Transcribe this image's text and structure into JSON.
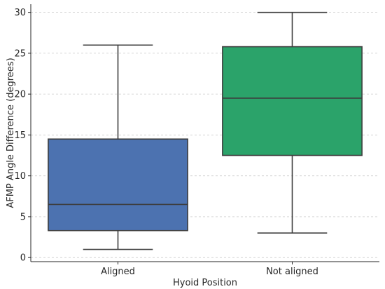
{
  "chart_data": {
    "type": "box",
    "xlabel": "Hyoid Position",
    "ylabel": "AFMP Angle Difference (degrees)",
    "ylim": [
      -0.5,
      31
    ],
    "yticks": [
      0,
      5,
      10,
      15,
      20,
      25,
      30
    ],
    "grid": "horizontal dashed",
    "categories": [
      "Aligned",
      "Not aligned"
    ],
    "boxes": [
      {
        "category": "Aligned",
        "min": 1,
        "q1": 3.3,
        "median": 6.5,
        "q3": 14.5,
        "max": 26,
        "color": "#4c72b0"
      },
      {
        "category": "Not aligned",
        "min": 3,
        "q1": 12.5,
        "median": 19.5,
        "q3": 25.8,
        "max": 30,
        "color": "#2ba36a"
      }
    ]
  }
}
